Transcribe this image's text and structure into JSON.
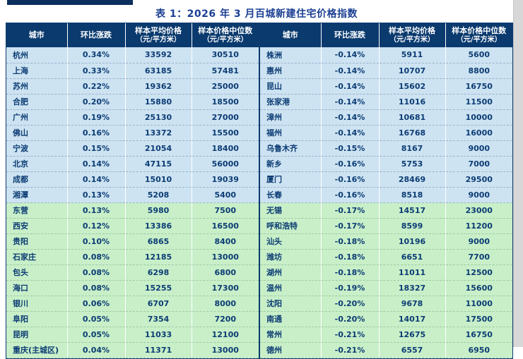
{
  "title": "表 1：2026 年 3 月百城新建住宅价格指数",
  "colors": {
    "header_bg": "#0a3a6e",
    "row_blue": "#cde3f2",
    "row_green": "#c8efc8",
    "body_text": "#0c3c74",
    "title_text": "#1b3f94"
  },
  "chart_data": {
    "type": "table",
    "title": "表 1：2026 年 3 月百城新建住宅价格指数",
    "columns": [
      {
        "key": "city",
        "label": "城市",
        "sub": ""
      },
      {
        "key": "change",
        "label": "环比涨跌",
        "sub": ""
      },
      {
        "key": "avg",
        "label": "样本平均价格",
        "sub": "（元/平方米）"
      },
      {
        "key": "median",
        "label": "样本价格中位数",
        "sub": "（元/平方米）"
      }
    ],
    "panels": [
      {
        "name": "left",
        "green_start": 10,
        "rows": [
          {
            "city": "杭州",
            "change": "0.34%",
            "avg": "33592",
            "median": "30510"
          },
          {
            "city": "上海",
            "change": "0.33%",
            "avg": "63185",
            "median": "57481"
          },
          {
            "city": "苏州",
            "change": "0.22%",
            "avg": "19362",
            "median": "25000"
          },
          {
            "city": "合肥",
            "change": "0.20%",
            "avg": "15880",
            "median": "18500"
          },
          {
            "city": "广州",
            "change": "0.19%",
            "avg": "25130",
            "median": "27000"
          },
          {
            "city": "佛山",
            "change": "0.16%",
            "avg": "13372",
            "median": "15500"
          },
          {
            "city": "宁波",
            "change": "0.15%",
            "avg": "21054",
            "median": "18400"
          },
          {
            "city": "北京",
            "change": "0.14%",
            "avg": "47115",
            "median": "56000"
          },
          {
            "city": "成都",
            "change": "0.14%",
            "avg": "15010",
            "median": "19039"
          },
          {
            "city": "湘潭",
            "change": "0.13%",
            "avg": "5208",
            "median": "5400"
          },
          {
            "city": "东营",
            "change": "0.13%",
            "avg": "5980",
            "median": "7500"
          },
          {
            "city": "西安",
            "change": "0.12%",
            "avg": "13386",
            "median": "16500"
          },
          {
            "city": "贵阳",
            "change": "0.10%",
            "avg": "6865",
            "median": "8400"
          },
          {
            "city": "石家庄",
            "change": "0.08%",
            "avg": "12185",
            "median": "13000"
          },
          {
            "city": "包头",
            "change": "0.08%",
            "avg": "6298",
            "median": "6800"
          },
          {
            "city": "海口",
            "change": "0.08%",
            "avg": "15255",
            "median": "17300"
          },
          {
            "city": "银川",
            "change": "0.06%",
            "avg": "6707",
            "median": "8000"
          },
          {
            "city": "阜阳",
            "change": "0.05%",
            "avg": "7354",
            "median": "7200"
          },
          {
            "city": "昆明",
            "change": "0.05%",
            "avg": "11033",
            "median": "12100"
          },
          {
            "city": "重庆(主城区)",
            "change": "0.04%",
            "avg": "11371",
            "median": "13000"
          }
        ]
      },
      {
        "name": "right",
        "green_start": 10,
        "rows": [
          {
            "city": "株洲",
            "change": "-0.14%",
            "avg": "5911",
            "median": "5600"
          },
          {
            "city": "惠州",
            "change": "-0.14%",
            "avg": "10707",
            "median": "8800"
          },
          {
            "city": "昆山",
            "change": "-0.14%",
            "avg": "15602",
            "median": "16750"
          },
          {
            "city": "张家港",
            "change": "-0.14%",
            "avg": "11016",
            "median": "11500"
          },
          {
            "city": "漳州",
            "change": "-0.14%",
            "avg": "10681",
            "median": "10000"
          },
          {
            "city": "福州",
            "change": "-0.14%",
            "avg": "16768",
            "median": "16000"
          },
          {
            "city": "乌鲁木齐",
            "change": "-0.15%",
            "avg": "8167",
            "median": "9000"
          },
          {
            "city": "新乡",
            "change": "-0.16%",
            "avg": "5753",
            "median": "7000"
          },
          {
            "city": "厦门",
            "change": "-0.16%",
            "avg": "28469",
            "median": "29500"
          },
          {
            "city": "长春",
            "change": "-0.16%",
            "avg": "8518",
            "median": "9000"
          },
          {
            "city": "无锡",
            "change": "-0.17%",
            "avg": "14517",
            "median": "23000"
          },
          {
            "city": "呼和浩特",
            "change": "-0.17%",
            "avg": "8599",
            "median": "11200"
          },
          {
            "city": "汕头",
            "change": "-0.18%",
            "avg": "10196",
            "median": "9000"
          },
          {
            "city": "潍坊",
            "change": "-0.18%",
            "avg": "6651",
            "median": "7700"
          },
          {
            "city": "湖州",
            "change": "-0.18%",
            "avg": "11011",
            "median": "12500"
          },
          {
            "city": "温州",
            "change": "-0.19%",
            "avg": "18327",
            "median": "15600"
          },
          {
            "city": "沈阳",
            "change": "-0.20%",
            "avg": "9678",
            "median": "11000"
          },
          {
            "city": "南通",
            "change": "-0.20%",
            "avg": "14017",
            "median": "17500"
          },
          {
            "city": "常州",
            "change": "-0.21%",
            "avg": "12675",
            "median": "16750"
          },
          {
            "city": "德州",
            "change": "-0.21%",
            "avg": "6557",
            "median": "6950"
          }
        ]
      }
    ]
  }
}
